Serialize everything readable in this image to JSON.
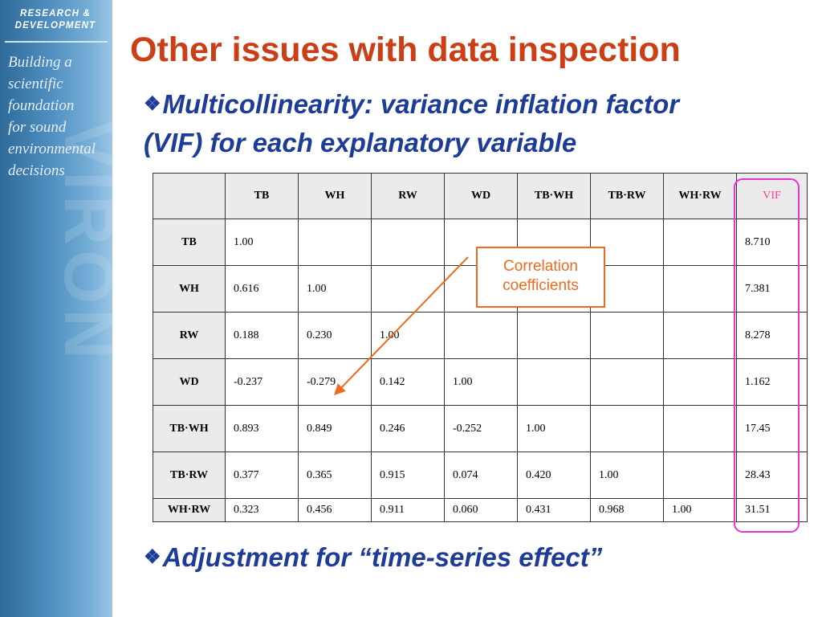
{
  "sidebar": {
    "logo_line1": "RESEARCH &",
    "logo_line2": "DEVELOPMENT",
    "tagline": [
      "Building a",
      "scientific",
      "foundation",
      "for sound",
      "environmental",
      "decisions"
    ],
    "watermark": "VIRON"
  },
  "title": "Other issues with data inspection",
  "bullets": {
    "b1_line1": "Multicollinearity: variance inflation factor",
    "b1_line2": "(VIF) for each explanatory variable",
    "b2": "Adjustment for “time-series effect”",
    "symbol": "❖"
  },
  "table": {
    "headers": [
      "",
      "TB",
      "WH",
      "RW",
      "WD",
      "TB·WH",
      "TB·RW",
      "WH·RW",
      "VIF"
    ],
    "rows": [
      [
        "TB",
        "1.00",
        "",
        "",
        "",
        "",
        "",
        "",
        "8.710"
      ],
      [
        "WH",
        "0.616",
        "1.00",
        "",
        "",
        "",
        "",
        "",
        "7.381"
      ],
      [
        "RW",
        "0.188",
        "0.230",
        "1.00",
        "",
        "",
        "",
        "",
        "8.278"
      ],
      [
        "WD",
        "-0.237",
        "-0.279",
        "0.142",
        "1.00",
        "",
        "",
        "",
        "1.162"
      ],
      [
        "TB·WH",
        "0.893",
        "0.849",
        "0.246",
        "-0.252",
        "1.00",
        "",
        "",
        "17.45"
      ],
      [
        "TB·RW",
        "0.377",
        "0.365",
        "0.915",
        "0.074",
        "0.420",
        "1.00",
        "",
        "28.43"
      ],
      [
        "WH·RW",
        "0.323",
        "0.456",
        "0.911",
        "0.060",
        "0.431",
        "0.968",
        "1.00",
        "31.51"
      ]
    ]
  },
  "callout": {
    "line1": "Correlation",
    "line2": "coefficients"
  },
  "colors": {
    "title": "#cc3f16",
    "bullet": "#1d3c99",
    "vif_highlight": "#e334d6",
    "callout": "#f06a1e"
  }
}
